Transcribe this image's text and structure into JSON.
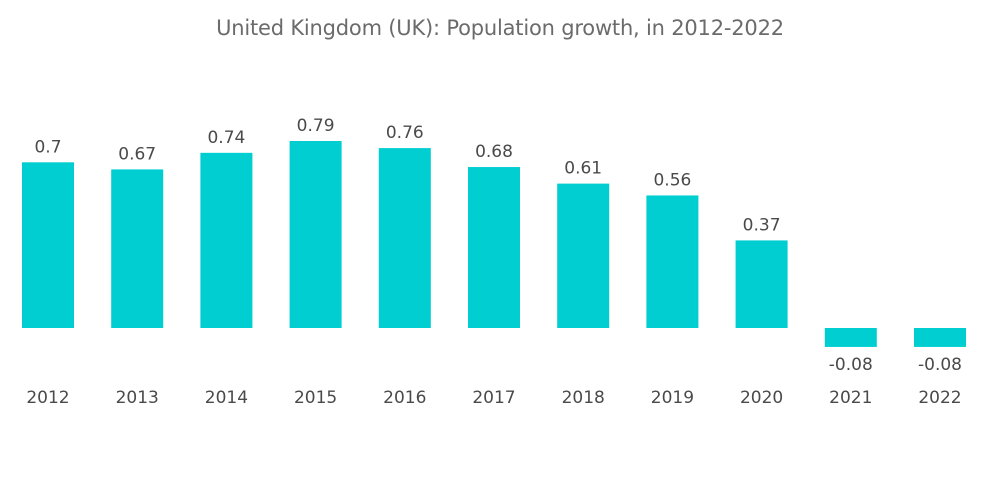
{
  "chart_data": {
    "type": "bar",
    "title": "United Kingdom (UK): Population growth, in 2012-2022",
    "xlabel": "",
    "ylabel": "",
    "categories": [
      "2012",
      "2013",
      "2014",
      "2015",
      "2016",
      "2017",
      "2018",
      "2019",
      "2020",
      "2021",
      "2022"
    ],
    "values": [
      0.7,
      0.67,
      0.74,
      0.79,
      0.76,
      0.68,
      0.61,
      0.56,
      0.37,
      -0.08,
      -0.08
    ],
    "value_labels": [
      "0.7",
      "0.67",
      "0.74",
      "0.79",
      "0.76",
      "0.68",
      "0.61",
      "0.56",
      "0.37",
      "-0.08",
      "-0.08"
    ],
    "ylim": [
      -0.08,
      0.79
    ],
    "grid": false,
    "legend": "none",
    "bar_color": "#00CED1"
  }
}
